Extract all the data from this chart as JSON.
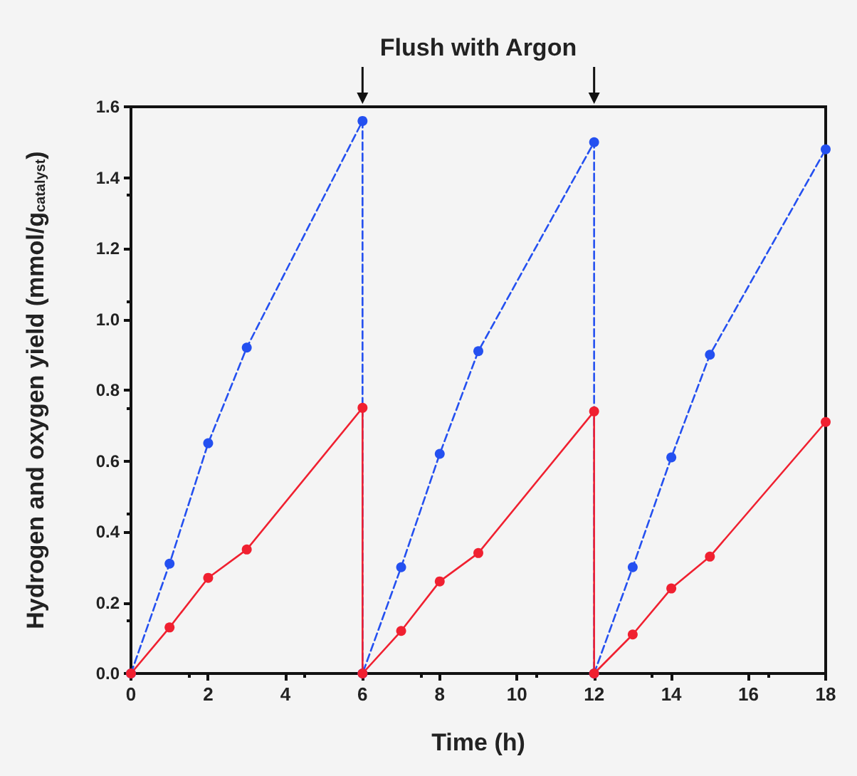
{
  "chart_data": {
    "type": "line",
    "xlabel": "Time (h)",
    "ylabel": "Hydrogen and oxygen yield (mmol/g$_{catalyst}$)",
    "annotations": [
      "Flush with Argon"
    ],
    "marker": "circle",
    "series": [
      {
        "color": "#2450f0",
        "line_style": "dashed",
        "x": [
          0,
          1,
          2,
          3,
          6,
          6,
          7,
          8,
          9,
          12,
          12,
          13,
          14,
          15,
          18
        ],
        "values": [
          0,
          0.31,
          0.65,
          0.92,
          1.56,
          0,
          0.3,
          0.62,
          0.91,
          1.5,
          0,
          0.3,
          0.61,
          0.9,
          1.48
        ]
      },
      {
        "color": "#f02030",
        "line_style": "solid",
        "x": [
          0,
          1,
          2,
          3,
          6,
          6,
          7,
          8,
          9,
          12,
          12,
          13,
          14,
          15,
          18
        ],
        "values": [
          0,
          0.13,
          0.27,
          0.35,
          0.75,
          0,
          0.12,
          0.26,
          0.34,
          0.74,
          0,
          0.11,
          0.24,
          0.33,
          0.71
        ]
      }
    ],
    "xlim": [
      0,
      18
    ],
    "xticks": [
      0,
      2,
      4,
      6,
      8,
      10,
      12,
      14,
      16,
      18
    ],
    "ylim": [
      0,
      1.6
    ],
    "yticks": [
      {
        "value": 0,
        "label": "0.0"
      },
      {
        "value": 0.2,
        "label": "0.2"
      },
      {
        "value": 0.4,
        "label": "0.4"
      },
      {
        "value": 0.6,
        "label": "0.6"
      },
      {
        "value": 0.8,
        "label": "0.8"
      },
      {
        "value": 1.0,
        "label": "1.0"
      },
      {
        "value": 1.2,
        "label": "1.2"
      },
      {
        "value": 1.4,
        "label": "1.4"
      },
      {
        "value": 1.6,
        "label": "1.6"
      }
    ]
  }
}
